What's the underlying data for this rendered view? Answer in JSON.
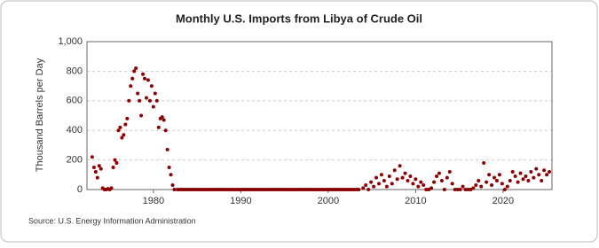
{
  "chart_data": {
    "type": "scatter",
    "title": "Monthly U.S. Imports from Libya of Crude Oil",
    "y_label": "Thousand Barrels per Day",
    "source": "Source: U.S. Energy Information Administration",
    "color": "#8b0000",
    "grid": true,
    "xlim": [
      1972.4,
      2025.6
    ],
    "xticks": [
      1980,
      1990,
      2000,
      2010,
      2020
    ],
    "ylim": [
      0,
      1000
    ],
    "yticks": [
      0,
      200,
      400,
      600,
      800,
      {
        "value": 1000,
        "label": "1,000"
      }
    ],
    "x": [
      1973.0,
      1973.2,
      1973.4,
      1973.6,
      1973.8,
      1974.0,
      1974.2,
      1974.4,
      1974.6,
      1974.8,
      1975.0,
      1975.2,
      1975.4,
      1975.6,
      1975.8,
      1976.0,
      1976.2,
      1976.4,
      1976.6,
      1976.8,
      1977.0,
      1977.2,
      1977.4,
      1977.6,
      1977.8,
      1978.0,
      1978.2,
      1978.4,
      1978.6,
      1978.8,
      1979.0,
      1979.2,
      1979.4,
      1979.6,
      1979.8,
      1980.0,
      1980.2,
      1980.4,
      1980.6,
      1980.8,
      1981.0,
      1981.2,
      1981.4,
      1981.6,
      1981.8,
      1982.0,
      1982.2,
      1982.4,
      1982.75,
      1983.0,
      1983.25,
      1983.5,
      1983.75,
      1984.0,
      1984.25,
      1984.5,
      1984.75,
      1985.0,
      1985.25,
      1985.5,
      1985.75,
      1986.0,
      1986.25,
      1986.5,
      1986.75,
      1987.0,
      1987.25,
      1987.5,
      1987.75,
      1988.0,
      1988.25,
      1988.5,
      1988.75,
      1989.0,
      1989.25,
      1989.5,
      1989.75,
      1990.0,
      1990.25,
      1990.5,
      1990.75,
      1991.0,
      1991.25,
      1991.5,
      1991.75,
      1992.0,
      1992.25,
      1992.5,
      1992.75,
      1993.0,
      1993.25,
      1993.5,
      1993.75,
      1994.0,
      1994.25,
      1994.5,
      1994.75,
      1995.0,
      1995.25,
      1995.5,
      1995.75,
      1996.0,
      1996.25,
      1996.5,
      1996.75,
      1997.0,
      1997.25,
      1997.5,
      1997.75,
      1998.0,
      1998.25,
      1998.5,
      1998.75,
      1999.0,
      1999.25,
      1999.5,
      1999.75,
      2000.0,
      2000.25,
      2000.5,
      2000.75,
      2001.0,
      2001.25,
      2001.5,
      2001.75,
      2002.0,
      2002.25,
      2002.5,
      2002.75,
      2003.0,
      2003.25,
      2003.5,
      2004.0,
      2004.3,
      2004.6,
      2004.9,
      2005.2,
      2005.5,
      2005.8,
      2006.1,
      2006.4,
      2006.7,
      2007.0,
      2007.3,
      2007.6,
      2007.9,
      2008.2,
      2008.5,
      2008.8,
      2009.1,
      2009.4,
      2009.7,
      2010.0,
      2010.3,
      2010.6,
      2010.9,
      2011.2,
      2011.5,
      2011.8,
      2012.1,
      2012.4,
      2012.7,
      2013.0,
      2013.3,
      2013.6,
      2013.9,
      2014.2,
      2014.5,
      2014.8,
      2015.1,
      2015.4,
      2015.7,
      2016.0,
      2016.3,
      2016.6,
      2016.9,
      2017.2,
      2017.5,
      2017.8,
      2018.1,
      2018.4,
      2018.7,
      2019.0,
      2019.3,
      2019.6,
      2019.9,
      2020.2,
      2020.5,
      2020.8,
      2021.1,
      2021.4,
      2021.7,
      2022.0,
      2022.3,
      2022.6,
      2022.9,
      2023.2,
      2023.5,
      2023.8,
      2024.1,
      2024.4,
      2024.7,
      2025.0,
      2025.3
    ],
    "values": [
      220,
      150,
      120,
      80,
      160,
      140,
      10,
      0,
      0,
      5,
      0,
      10,
      150,
      200,
      180,
      400,
      420,
      350,
      370,
      440,
      480,
      600,
      700,
      750,
      800,
      820,
      650,
      600,
      500,
      780,
      750,
      620,
      740,
      600,
      700,
      560,
      650,
      600,
      420,
      480,
      490,
      470,
      400,
      270,
      150,
      100,
      30,
      0,
      0,
      0,
      0,
      0,
      0,
      0,
      0,
      0,
      0,
      0,
      0,
      0,
      0,
      0,
      0,
      0,
      0,
      0,
      0,
      0,
      0,
      0,
      0,
      0,
      0,
      0,
      0,
      0,
      0,
      0,
      0,
      0,
      0,
      0,
      0,
      0,
      0,
      0,
      0,
      0,
      0,
      0,
      0,
      0,
      0,
      0,
      0,
      0,
      0,
      0,
      0,
      0,
      0,
      0,
      0,
      0,
      0,
      0,
      0,
      0,
      0,
      0,
      0,
      0,
      0,
      0,
      0,
      0,
      0,
      0,
      0,
      0,
      0,
      0,
      0,
      0,
      0,
      0,
      0,
      0,
      0,
      0,
      0,
      0,
      10,
      30,
      0,
      50,
      20,
      80,
      40,
      100,
      60,
      20,
      90,
      40,
      130,
      70,
      160,
      80,
      110,
      60,
      90,
      40,
      70,
      20,
      50,
      30,
      0,
      0,
      10,
      50,
      90,
      110,
      60,
      0,
      80,
      120,
      40,
      0,
      0,
      0,
      20,
      0,
      0,
      0,
      10,
      30,
      60,
      20,
      180,
      50,
      100,
      30,
      80,
      60,
      100,
      40,
      0,
      20,
      60,
      120,
      90,
      50,
      110,
      70,
      90,
      60,
      120,
      80,
      140,
      100,
      60,
      130,
      100,
      120
    ]
  }
}
